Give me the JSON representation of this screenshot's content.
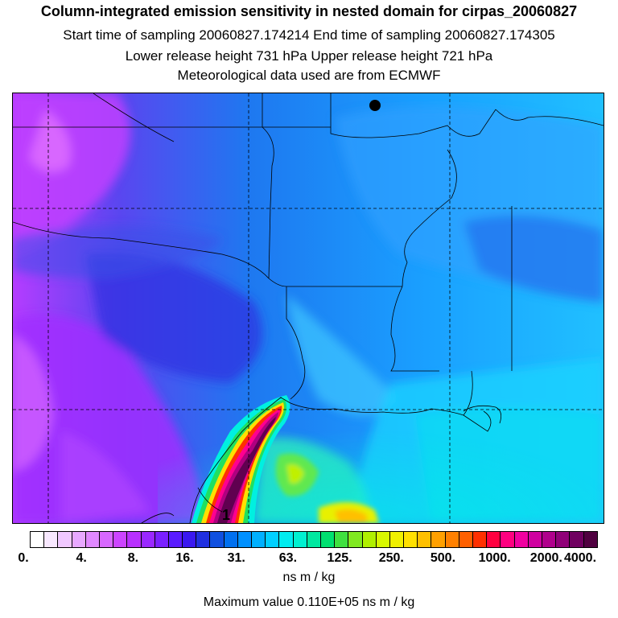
{
  "header": {
    "title": "Column-integrated emission sensitivity in nested domain for cirpas_20060827",
    "sampling_line": "Start time of sampling 20060827.174214     End time of sampling 20060827.174305",
    "release_line": "Lower release height  731 hPa        Upper release height  721 hPa",
    "met_line": "Meteorological data used are from ECMWF"
  },
  "map": {
    "marker_label": "1",
    "release_marker": "black-dot"
  },
  "legend": {
    "tick_labels": [
      "0.",
      "4.",
      "8.",
      "16.",
      "31.",
      "63.",
      "125.",
      "250.",
      "500.",
      "1000.",
      "2000.",
      "4000."
    ],
    "units": "ns m / kg",
    "max_value_text": "Maximum value  0.110E+05 ns m / kg",
    "colors": [
      "#ffffff",
      "#f8e8ff",
      "#f0c8ff",
      "#e8a8ff",
      "#e088ff",
      "#d868ff",
      "#cc44ff",
      "#b830ff",
      "#9a28ff",
      "#7a20ff",
      "#5a1cff",
      "#3a18f0",
      "#2030e0",
      "#1050e0",
      "#0070f0",
      "#0090ff",
      "#00b0ff",
      "#00d0ff",
      "#00ecf0",
      "#00f0d0",
      "#00e8a0",
      "#00e070",
      "#40e040",
      "#80e820",
      "#b0f000",
      "#d8f800",
      "#f0f000",
      "#ffe000",
      "#ffc000",
      "#ffa000",
      "#ff8000",
      "#ff6000",
      "#ff3000",
      "#ff0040",
      "#ff0080",
      "#f000a0",
      "#d000a0",
      "#b0008c",
      "#900078",
      "#700060",
      "#500040"
    ]
  }
}
